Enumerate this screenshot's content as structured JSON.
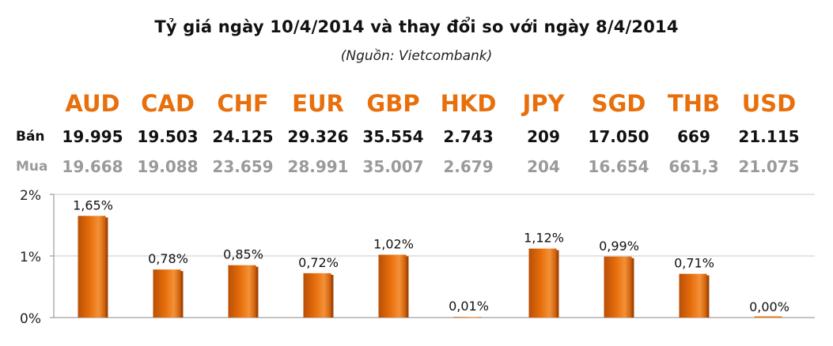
{
  "header": {
    "title": "Tỷ giá ngày 10/4/2014 và thay đổi so với ngày 8/4/2014",
    "source": "(Nguồn: Vietcombank)"
  },
  "table": {
    "sell_label": "Bán",
    "buy_label": "Mua",
    "currencies": [
      "AUD",
      "CAD",
      "CHF",
      "EUR",
      "GBP",
      "HKD",
      "JPY",
      "SGD",
      "THB",
      "USD"
    ],
    "sell": [
      "19.995",
      "19.503",
      "24.125",
      "29.326",
      "35.554",
      "2.743",
      "209",
      "17.050",
      "669",
      "21.115"
    ],
    "buy": [
      "19.668",
      "19.088",
      "23.659",
      "28.991",
      "35.007",
      "2.679",
      "204",
      "16.654",
      "661,3",
      "21.075"
    ]
  },
  "chart_data": {
    "type": "bar",
    "categories": [
      "AUD",
      "CAD",
      "CHF",
      "EUR",
      "GBP",
      "HKD",
      "JPY",
      "SGD",
      "THB",
      "USD"
    ],
    "values": [
      1.65,
      0.78,
      0.85,
      0.72,
      1.02,
      0.01,
      1.12,
      0.99,
      0.71,
      0.0
    ],
    "data_labels": [
      "1,65%",
      "0,78%",
      "0,85%",
      "0,72%",
      "1,02%",
      "0,01%",
      "1,12%",
      "0,99%",
      "0,71%",
      "0,00%"
    ],
    "yticks": [
      "0%",
      "1%",
      "2%"
    ],
    "ylim": [
      0,
      2
    ],
    "grid": true,
    "colors": {
      "bar": "#e8700c",
      "bar_dark": "#b94f05",
      "bar_light": "#f7a24a",
      "grid": "#c8c8c8"
    }
  }
}
